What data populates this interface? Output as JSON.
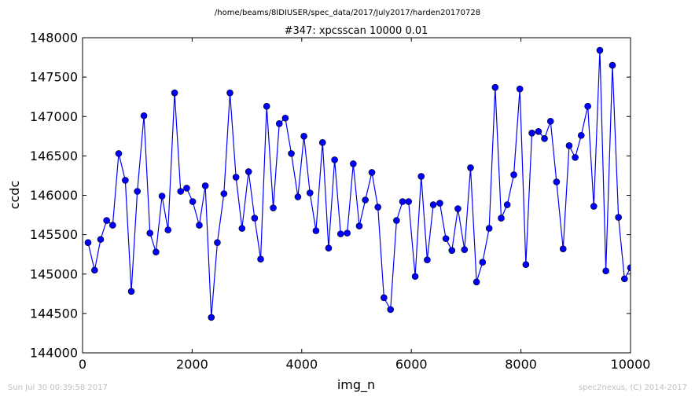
{
  "suptitle": "/home/beams/8IDIUSER/spec_data/2017/July2017/harden20170728",
  "footer_left": "Sun Jul 30 00:39:58 2017",
  "footer_right": "spec2nexus, (C) 2014-2017",
  "colors": {
    "series": "#0000ff",
    "axes": "#000000",
    "footer": "#bfbfbf"
  },
  "chart_data": {
    "type": "line",
    "title": "#347: xpcsscan 10000 0.01",
    "xlabel": "img_n",
    "ylabel": "ccdc",
    "xlim": [
      0,
      10000
    ],
    "ylim": [
      144000,
      148000
    ],
    "xticks": [
      0,
      2000,
      4000,
      6000,
      8000,
      10000
    ],
    "yticks": [
      144000,
      144500,
      145000,
      145500,
      146000,
      146500,
      147000,
      147500,
      148000
    ],
    "grid": false,
    "legend": "none",
    "markers": true,
    "series": [
      {
        "x": [
          100,
          220,
          330,
          440,
          550,
          660,
          780,
          890,
          1000,
          1120,
          1230,
          1340,
          1450,
          1560,
          1680,
          1790,
          1900,
          2010,
          2130,
          2240,
          2350,
          2460,
          2580,
          2690,
          2800,
          2910,
          3030,
          3140,
          3250,
          3360,
          3480,
          3590,
          3700,
          3810,
          3930,
          4040,
          4150,
          4260,
          4380,
          4490,
          4600,
          4710,
          4830,
          4940,
          5050,
          5160,
          5280,
          5390,
          5500,
          5620,
          5730,
          5840,
          5950,
          6070,
          6180,
          6290,
          6400,
          6520,
          6630,
          6740,
          6850,
          6970,
          7080,
          7190,
          7300,
          7420,
          7530,
          7640,
          7750,
          7870,
          7980,
          8090,
          8200,
          8320,
          8430,
          8540,
          8650,
          8770,
          8880,
          8990,
          9100,
          9220,
          9330,
          9440,
          9550,
          9670,
          9780,
          9890,
          10000
        ],
        "y": [
          145400,
          145050,
          145440,
          145680,
          145620,
          146530,
          146190,
          144780,
          146050,
          147010,
          145520,
          145280,
          145990,
          145560,
          147300,
          146050,
          146090,
          145920,
          145620,
          146120,
          144450,
          145400,
          146020,
          147300,
          146230,
          145580,
          146300,
          145710,
          145190,
          147130,
          145840,
          146910,
          146980,
          146530,
          145980,
          146750,
          146030,
          145550,
          146670,
          145330,
          146450,
          145510,
          145520,
          146400,
          145610,
          145940,
          146290,
          145850,
          144700,
          144550,
          145680,
          145920,
          145920,
          144970,
          146240,
          145180,
          145880,
          145900,
          145450,
          145300,
          145830,
          145310,
          146350,
          144900,
          145150,
          145580,
          147370,
          145710,
          145880,
          146260,
          147350,
          145120,
          146790,
          146810,
          146720,
          146940,
          146170,
          145320,
          146630,
          146480,
          146760,
          147130,
          145860,
          147840,
          145040,
          147650,
          145720,
          144940,
          145080
        ]
      }
    ]
  }
}
